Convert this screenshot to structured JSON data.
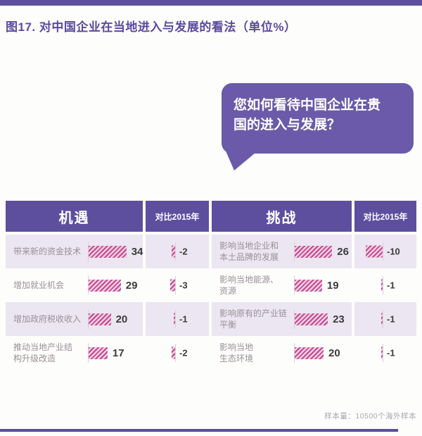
{
  "title": "图17. 对中国企业在当地进入与发展的看法（单位%）",
  "bubble": {
    "question": "您如何看待中国企业在贵\n国的进入与发展？"
  },
  "table": {
    "headers": {
      "opportunities": "机遇",
      "vs2015_left": "对比2015年",
      "challenges": "挑战",
      "vs2015_right": "对比2015年"
    },
    "rows": [
      {
        "opportunity": {
          "label": "带来新的资金技术",
          "value": 34,
          "delta": -2
        },
        "challenge": {
          "label": "影响当地企业和\n本土品牌的发展",
          "value": 26,
          "delta": -10
        }
      },
      {
        "opportunity": {
          "label": "增加就业机会",
          "value": 29,
          "delta": -3
        },
        "challenge": {
          "label": "影响当地能源、\n资源",
          "value": 19,
          "delta": -1
        }
      },
      {
        "opportunity": {
          "label": "增加政府税收收入",
          "value": 20,
          "delta": -1
        },
        "challenge": {
          "label": "影响原有的产业链\n平衡",
          "value": 23,
          "delta": -1
        }
      },
      {
        "opportunity": {
          "label": "推动当地产业结\n构升级改造",
          "value": 17,
          "delta": -2
        },
        "challenge": {
          "label": "影响当地\n生态环境",
          "value": 20,
          "delta": -1
        }
      }
    ]
  },
  "footer": {
    "sample_note": "样本量：10500个海外样本"
  },
  "colors": {
    "header_purple": "#5d4f9e",
    "bubble_purple": "#6a5aa9",
    "title_purple": "#5a4a9f",
    "bar_stripe_magenta": "#c4498f",
    "bar_stripe_light": "#f2cfe3",
    "row_alt_lavender": "#ebe6f1",
    "label_gray": "#9a9098",
    "footnote_gray": "#aba4b2"
  },
  "chart_data": {
    "type": "bar",
    "title": "图17. 对中国企业在当地进入与发展的看法（单位%）",
    "unit": "%",
    "legend_position": "none",
    "groups": [
      {
        "name": "机遇",
        "categories": [
          "带来新的资金技术",
          "增加就业机会",
          "增加政府税收收入",
          "推动当地产业结构升级改造"
        ],
        "values": [
          34,
          29,
          20,
          17
        ],
        "delta_vs_2015": [
          -2,
          -3,
          -1,
          -2
        ]
      },
      {
        "name": "挑战",
        "categories": [
          "影响当地企业和本土品牌的发展",
          "影响当地能源、资源",
          "影响原有的产业链平衡",
          "影响当地生态环境"
        ],
        "values": [
          26,
          19,
          23,
          20
        ],
        "delta_vs_2015": [
          -10,
          -1,
          -1,
          -1
        ]
      }
    ],
    "sample_note": "样本量：10500个海外样本"
  }
}
